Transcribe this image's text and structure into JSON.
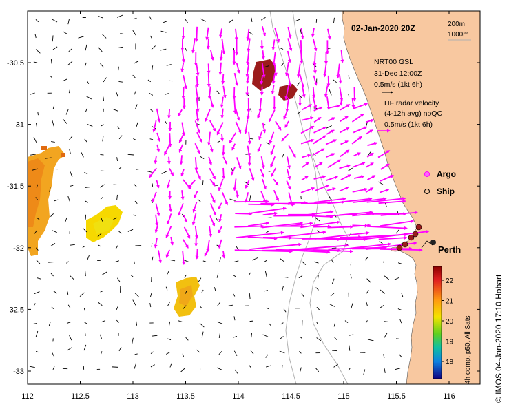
{
  "title": "02-Jan-2020 20Z",
  "contours": [
    "200m",
    "1000m"
  ],
  "legend": {
    "model_name": "NRT00 GSL",
    "model_date": "31-Dec 12:00Z",
    "model_scale": "0.5m/s (1kt 6h)",
    "radar_line1": "HF radar velocity",
    "radar_line2": "(4-12h avg) noQC",
    "radar_scale": "0.5m/s (1kt 6h)"
  },
  "markers": {
    "argo": "Argo",
    "ship": "Ship",
    "city": "Perth"
  },
  "colorbar": {
    "ticks": [
      "22",
      "21",
      "20",
      "19",
      "18"
    ],
    "caption": "4h comp, p50, All Sats"
  },
  "credit": "© IMOS 04-Jan-2020 17:10 Hobart",
  "axes": {
    "x_ticks": [
      "112",
      "112.5",
      "113",
      "113.5",
      "114",
      "114.5",
      "115",
      "115.5",
      "116"
    ],
    "y_ticks": [
      "-30.5",
      "-31",
      "-31.5",
      "-32",
      "-32.5",
      "-33"
    ]
  },
  "colors": {
    "land": "#f8c8a0",
    "radar": "#ff00ff",
    "frame": "#000000",
    "bathy": "#b0b0b0",
    "argo": "#ff00ff",
    "ship": "#000000",
    "sst_hot": "#9b1c1c"
  }
}
